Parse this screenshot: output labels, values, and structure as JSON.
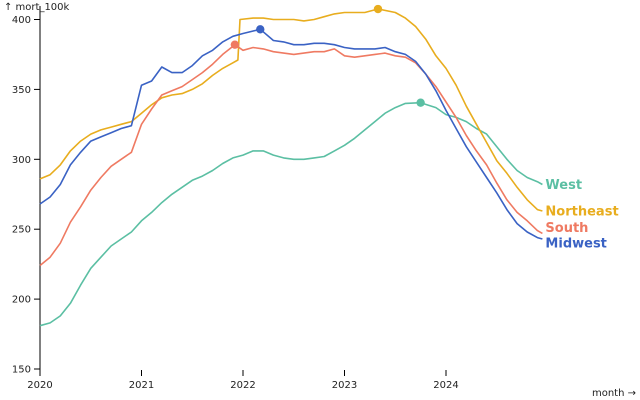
{
  "chart_data": {
    "type": "line",
    "title": "",
    "ylabel": "↑ mort_100k",
    "xlabel": "month →",
    "ylim": [
      150,
      420
    ],
    "xlim": [
      2020.0,
      2025.5
    ],
    "yticks": [
      150,
      200,
      250,
      300,
      350,
      400
    ],
    "xticks": [
      {
        "value": 2020,
        "label": "2020"
      },
      {
        "value": 2021,
        "label": "2021"
      },
      {
        "value": 2022,
        "label": "2022"
      },
      {
        "value": 2023,
        "label": "2023"
      },
      {
        "value": 2024,
        "label": "2024"
      }
    ],
    "grid": false,
    "series": [
      {
        "name": "West",
        "color": "#5bbfa3",
        "peak": {
          "x": 2023.75,
          "y": 340.5
        },
        "points": [
          [
            2020.0,
            181
          ],
          [
            2020.1,
            183
          ],
          [
            2020.2,
            188
          ],
          [
            2020.3,
            197
          ],
          [
            2020.4,
            210
          ],
          [
            2020.5,
            222
          ],
          [
            2020.6,
            230
          ],
          [
            2020.7,
            238
          ],
          [
            2020.8,
            243
          ],
          [
            2020.9,
            248
          ],
          [
            2021.0,
            256
          ],
          [
            2021.1,
            262
          ],
          [
            2021.2,
            269
          ],
          [
            2021.3,
            275
          ],
          [
            2021.4,
            280
          ],
          [
            2021.5,
            285
          ],
          [
            2021.6,
            288
          ],
          [
            2021.7,
            292
          ],
          [
            2021.8,
            297
          ],
          [
            2021.9,
            301
          ],
          [
            2022.0,
            303
          ],
          [
            2022.1,
            306
          ],
          [
            2022.2,
            306
          ],
          [
            2022.3,
            303
          ],
          [
            2022.4,
            301
          ],
          [
            2022.5,
            300
          ],
          [
            2022.6,
            300
          ],
          [
            2022.7,
            301
          ],
          [
            2022.8,
            302
          ],
          [
            2022.9,
            306
          ],
          [
            2023.0,
            310
          ],
          [
            2023.1,
            315
          ],
          [
            2023.2,
            321
          ],
          [
            2023.3,
            327
          ],
          [
            2023.4,
            333
          ],
          [
            2023.5,
            337
          ],
          [
            2023.6,
            340
          ],
          [
            2023.75,
            340.5
          ],
          [
            2023.9,
            337
          ],
          [
            2024.0,
            332
          ],
          [
            2024.1,
            330
          ],
          [
            2024.2,
            327
          ],
          [
            2024.3,
            322
          ],
          [
            2024.4,
            318
          ],
          [
            2024.5,
            309
          ],
          [
            2024.6,
            300
          ],
          [
            2024.7,
            292
          ],
          [
            2024.8,
            287
          ],
          [
            2024.9,
            284
          ],
          [
            2024.95,
            282
          ]
        ]
      },
      {
        "name": "Northeast",
        "color": "#e8ad1e",
        "peak": {
          "x": 2023.33,
          "y": 407.5
        },
        "points": [
          [
            2020.0,
            286
          ],
          [
            2020.1,
            289
          ],
          [
            2020.2,
            296
          ],
          [
            2020.3,
            306
          ],
          [
            2020.4,
            313
          ],
          [
            2020.5,
            318
          ],
          [
            2020.6,
            321
          ],
          [
            2020.7,
            323
          ],
          [
            2020.8,
            325
          ],
          [
            2020.9,
            327
          ],
          [
            2021.0,
            333
          ],
          [
            2021.1,
            339
          ],
          [
            2021.2,
            344
          ],
          [
            2021.3,
            346
          ],
          [
            2021.4,
            347
          ],
          [
            2021.5,
            350
          ],
          [
            2021.6,
            354
          ],
          [
            2021.7,
            360
          ],
          [
            2021.8,
            365
          ],
          [
            2021.9,
            369
          ],
          [
            2021.95,
            371
          ],
          [
            2021.97,
            400
          ],
          [
            2022.1,
            401
          ],
          [
            2022.2,
            401
          ],
          [
            2022.3,
            400
          ],
          [
            2022.4,
            400
          ],
          [
            2022.5,
            400
          ],
          [
            2022.6,
            399
          ],
          [
            2022.7,
            400
          ],
          [
            2022.8,
            402
          ],
          [
            2022.9,
            404
          ],
          [
            2023.0,
            405
          ],
          [
            2023.1,
            405
          ],
          [
            2023.2,
            405
          ],
          [
            2023.33,
            407.5
          ],
          [
            2023.5,
            405
          ],
          [
            2023.6,
            401
          ],
          [
            2023.7,
            395
          ],
          [
            2023.8,
            386
          ],
          [
            2023.9,
            374
          ],
          [
            2024.0,
            365
          ],
          [
            2024.1,
            353
          ],
          [
            2024.2,
            338
          ],
          [
            2024.3,
            325
          ],
          [
            2024.4,
            312
          ],
          [
            2024.5,
            299
          ],
          [
            2024.6,
            290
          ],
          [
            2024.7,
            280
          ],
          [
            2024.8,
            271
          ],
          [
            2024.9,
            264
          ],
          [
            2024.95,
            263
          ]
        ]
      },
      {
        "name": "South",
        "color": "#ef7a62",
        "peak": {
          "x": 2021.92,
          "y": 382
        },
        "points": [
          [
            2020.0,
            224
          ],
          [
            2020.1,
            230
          ],
          [
            2020.2,
            240
          ],
          [
            2020.3,
            255
          ],
          [
            2020.4,
            266
          ],
          [
            2020.5,
            278
          ],
          [
            2020.6,
            287
          ],
          [
            2020.7,
            295
          ],
          [
            2020.8,
            300
          ],
          [
            2020.9,
            305
          ],
          [
            2021.0,
            325
          ],
          [
            2021.1,
            336
          ],
          [
            2021.2,
            346
          ],
          [
            2021.3,
            349
          ],
          [
            2021.4,
            352
          ],
          [
            2021.5,
            357
          ],
          [
            2021.6,
            362
          ],
          [
            2021.7,
            368
          ],
          [
            2021.8,
            375
          ],
          [
            2021.92,
            382
          ],
          [
            2022.0,
            378
          ],
          [
            2022.1,
            380
          ],
          [
            2022.2,
            379
          ],
          [
            2022.3,
            377
          ],
          [
            2022.4,
            376
          ],
          [
            2022.5,
            375
          ],
          [
            2022.6,
            376
          ],
          [
            2022.7,
            377
          ],
          [
            2022.8,
            377
          ],
          [
            2022.9,
            379
          ],
          [
            2023.0,
            374
          ],
          [
            2023.1,
            373
          ],
          [
            2023.2,
            374
          ],
          [
            2023.3,
            375
          ],
          [
            2023.4,
            376
          ],
          [
            2023.5,
            374
          ],
          [
            2023.6,
            373
          ],
          [
            2023.7,
            369
          ],
          [
            2023.8,
            361
          ],
          [
            2023.9,
            352
          ],
          [
            2024.0,
            341
          ],
          [
            2024.1,
            330
          ],
          [
            2024.2,
            317
          ],
          [
            2024.3,
            306
          ],
          [
            2024.4,
            296
          ],
          [
            2024.5,
            283
          ],
          [
            2024.6,
            271
          ],
          [
            2024.7,
            262
          ],
          [
            2024.8,
            256
          ],
          [
            2024.9,
            249
          ],
          [
            2024.95,
            247
          ]
        ]
      },
      {
        "name": "Midwest",
        "color": "#3a62c4",
        "peak": {
          "x": 2022.17,
          "y": 393
        },
        "points": [
          [
            2020.0,
            268
          ],
          [
            2020.1,
            273
          ],
          [
            2020.2,
            282
          ],
          [
            2020.3,
            296
          ],
          [
            2020.4,
            305
          ],
          [
            2020.5,
            313
          ],
          [
            2020.6,
            316
          ],
          [
            2020.7,
            319
          ],
          [
            2020.8,
            322
          ],
          [
            2020.9,
            324
          ],
          [
            2021.0,
            353
          ],
          [
            2021.1,
            356
          ],
          [
            2021.2,
            366
          ],
          [
            2021.3,
            362
          ],
          [
            2021.4,
            362
          ],
          [
            2021.5,
            367
          ],
          [
            2021.6,
            374
          ],
          [
            2021.7,
            378
          ],
          [
            2021.8,
            384
          ],
          [
            2021.9,
            388
          ],
          [
            2022.0,
            390
          ],
          [
            2022.17,
            393
          ],
          [
            2022.3,
            385
          ],
          [
            2022.4,
            384
          ],
          [
            2022.5,
            382
          ],
          [
            2022.6,
            382
          ],
          [
            2022.7,
            383
          ],
          [
            2022.8,
            383
          ],
          [
            2022.9,
            382
          ],
          [
            2023.0,
            380
          ],
          [
            2023.1,
            379
          ],
          [
            2023.2,
            379
          ],
          [
            2023.3,
            379
          ],
          [
            2023.4,
            380
          ],
          [
            2023.5,
            377
          ],
          [
            2023.6,
            375
          ],
          [
            2023.7,
            370
          ],
          [
            2023.8,
            361
          ],
          [
            2023.9,
            349
          ],
          [
            2024.0,
            335
          ],
          [
            2024.1,
            322
          ],
          [
            2024.2,
            309
          ],
          [
            2024.3,
            298
          ],
          [
            2024.4,
            287
          ],
          [
            2024.5,
            276
          ],
          [
            2024.6,
            264
          ],
          [
            2024.7,
            254
          ],
          [
            2024.8,
            248
          ],
          [
            2024.9,
            244
          ],
          [
            2024.95,
            243
          ]
        ]
      }
    ]
  }
}
